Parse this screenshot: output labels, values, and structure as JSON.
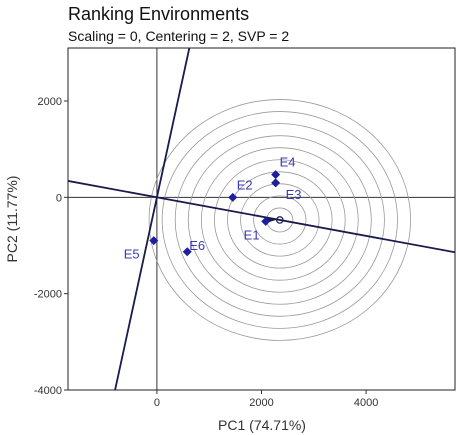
{
  "chart_data": {
    "type": "scatter",
    "title": "Ranking Environments",
    "subtitle": "Scaling = 0, Centering = 2, SVP = 2",
    "xlabel": "PC1 (74.71%)",
    "ylabel": "PC2 (11.77%)",
    "xlim": [
      -1700,
      5700
    ],
    "ylim": [
      -4000,
      3100
    ],
    "xticks": [
      0,
      2000,
      4000
    ],
    "yticks": [
      -4000,
      -2000,
      0,
      2000
    ],
    "points": [
      {
        "label": "E1",
        "x": 2080,
        "y": -500
      },
      {
        "label": "E2",
        "x": 1450,
        "y": 0
      },
      {
        "label": "E3",
        "x": 2270,
        "y": 300
      },
      {
        "label": "E4",
        "x": 2270,
        "y": 470
      },
      {
        "label": "E5",
        "x": -60,
        "y": -900
      },
      {
        "label": "E6",
        "x": 580,
        "y": -1130
      }
    ],
    "average_environment": {
      "x": 2350,
      "y": -470
    },
    "circle_radii": [
      250,
      500,
      750,
      1000,
      1250,
      1500,
      1750,
      2000,
      2250,
      2500
    ],
    "grid": false,
    "legend": "none",
    "colors": {
      "points": "#1f1f9e",
      "lines": "#1a1a4d",
      "circles": "#999999",
      "labels": "#3b3bb0"
    }
  }
}
